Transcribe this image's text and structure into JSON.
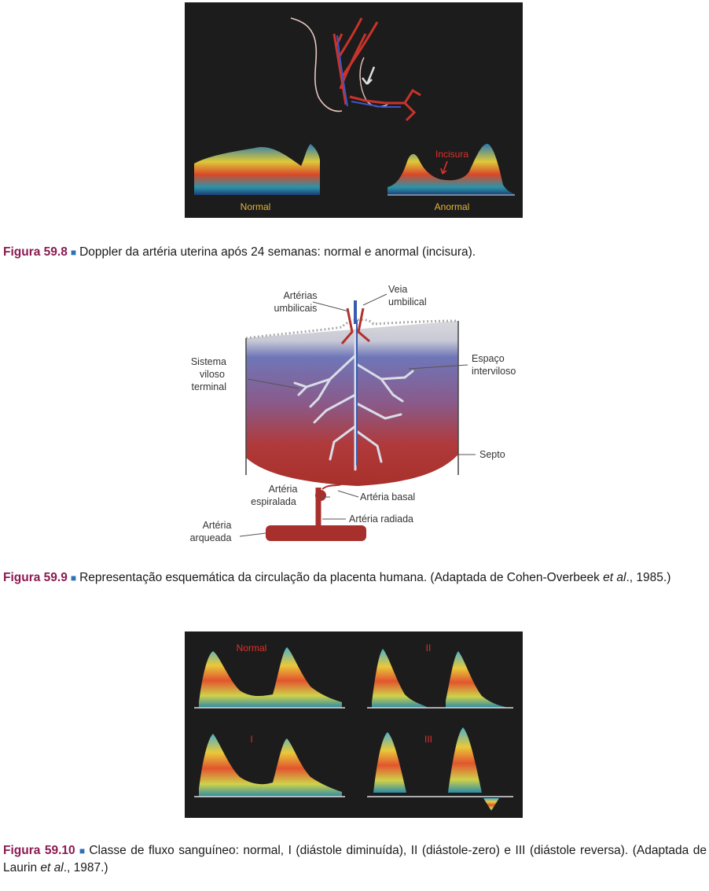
{
  "fig1": {
    "normal_label": "Normal",
    "abnormal_label": "Anormal",
    "notch_label": "Incisura",
    "caption": {
      "label": "Figura 59.8",
      "text": "Doppler da artéria uterina após 24 semanas: normal e anormal (incisura)."
    }
  },
  "fig2": {
    "labels": {
      "umbilical_arteries_1": "Artérias",
      "umbilical_arteries_2": "umbilicais",
      "umbilical_vein_1": "Veia",
      "umbilical_vein_2": "umbilical",
      "villous_1": "Sistema",
      "villous_2": "viloso",
      "villous_3": "terminal",
      "intervillous_1": "Espaço",
      "intervillous_2": "interviloso",
      "septum": "Septo",
      "spiral_1": "Artéria",
      "spiral_2": "espiralada",
      "basal": "Artéria basal",
      "radial": "Artéria radiada",
      "arcuate_1": "Artéria",
      "arcuate_2": "arqueada"
    },
    "caption": {
      "label": "Figura 59.9",
      "text_before": "Representação esquemática da circulação da placenta humana. (Adaptada de Cohen-Overbeek",
      "italic": "et al",
      "text_after": "., 1985.)"
    }
  },
  "fig3": {
    "panel_labels": [
      "Normal",
      "I",
      "II",
      "III"
    ],
    "caption": {
      "label": "Figura 59.10",
      "text_before": "Classe de fluxo sanguíneo: normal, I (diástole diminuída), II (diástole-zero) e III (diástole reversa). (Adaptada de Laurin",
      "italic": "et al",
      "text_after": "., 1987.)"
    }
  },
  "colors": {
    "caption_label": "#8b1a52",
    "caption_square": "#2b73b6",
    "artery_red": "#b3302a",
    "vein_blue": "#3a5cb0",
    "doppler_label_yellow": "#e3b53a",
    "doppler_label_red": "#e0302a"
  }
}
